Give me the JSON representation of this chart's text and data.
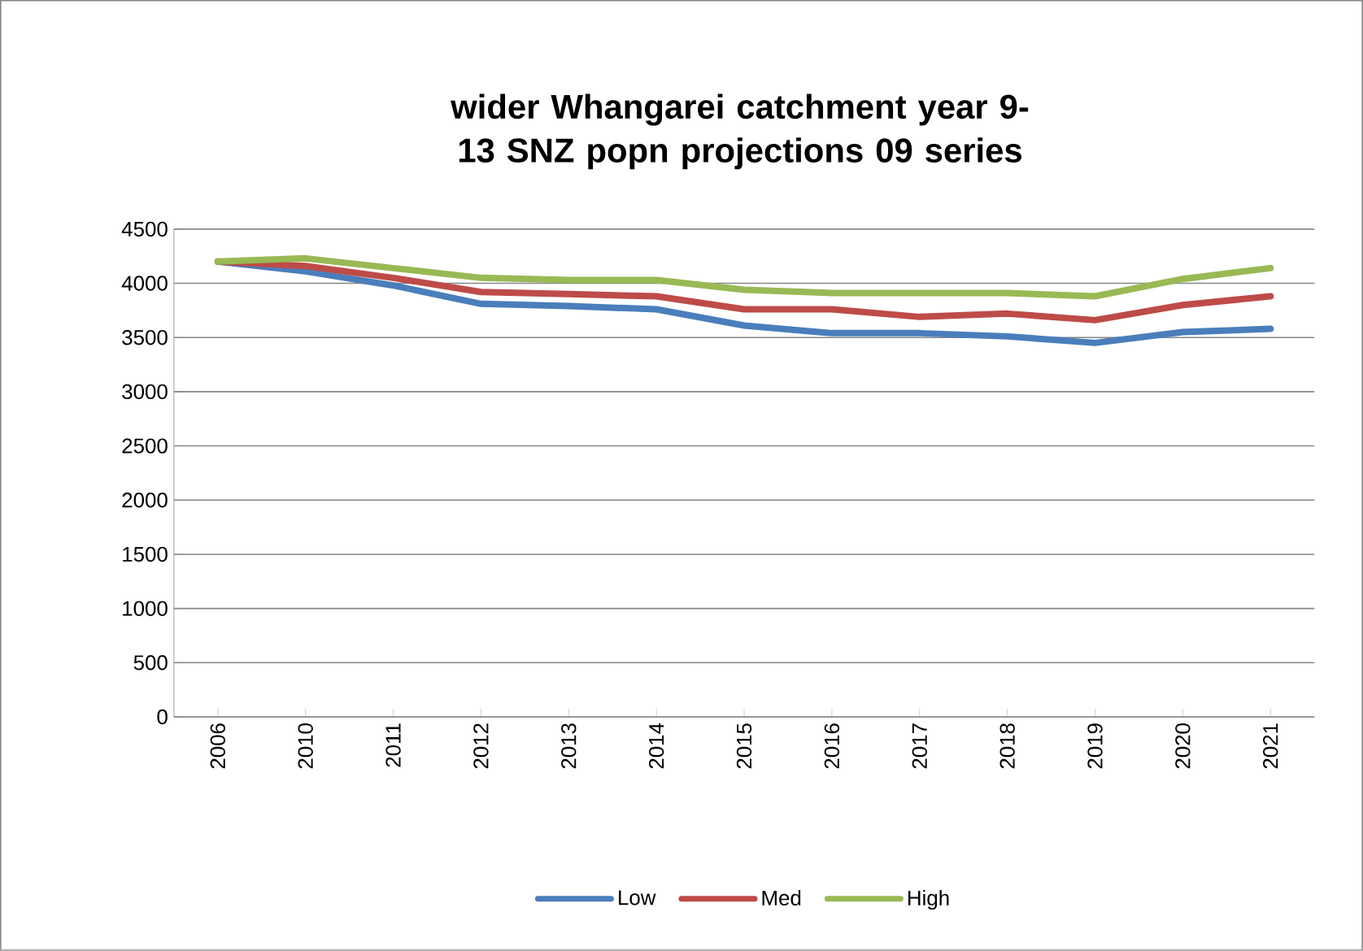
{
  "chart_data": {
    "type": "line",
    "title": "wider Whangarei catchment year 9-13 SNZ popn projections 09 series",
    "categories": [
      "2006",
      "2010",
      "2011",
      "2012",
      "2013",
      "2014",
      "2015",
      "2016",
      "2017",
      "2018",
      "2019",
      "2020",
      "2021"
    ],
    "series": [
      {
        "name": "Low",
        "color": "#4a7ebb",
        "values": [
          4200,
          4110,
          3980,
          3810,
          3790,
          3760,
          3610,
          3540,
          3540,
          3510,
          3450,
          3550,
          3580
        ]
      },
      {
        "name": "Med",
        "color": "#be4b48",
        "values": [
          4200,
          4160,
          4050,
          3920,
          3900,
          3880,
          3760,
          3760,
          3690,
          3720,
          3660,
          3800,
          3880
        ]
      },
      {
        "name": "High",
        "color": "#98b954",
        "values": [
          4200,
          4230,
          4140,
          4050,
          4030,
          4030,
          3940,
          3910,
          3910,
          3910,
          3880,
          4040,
          4140
        ]
      }
    ],
    "ylim": [
      0,
      4500
    ],
    "yticks": [
      0,
      500,
      1000,
      1500,
      2000,
      2500,
      3000,
      3500,
      4000,
      4500
    ],
    "grid": "y",
    "legend": "bottom",
    "marker": "none",
    "line_style": "solid"
  }
}
